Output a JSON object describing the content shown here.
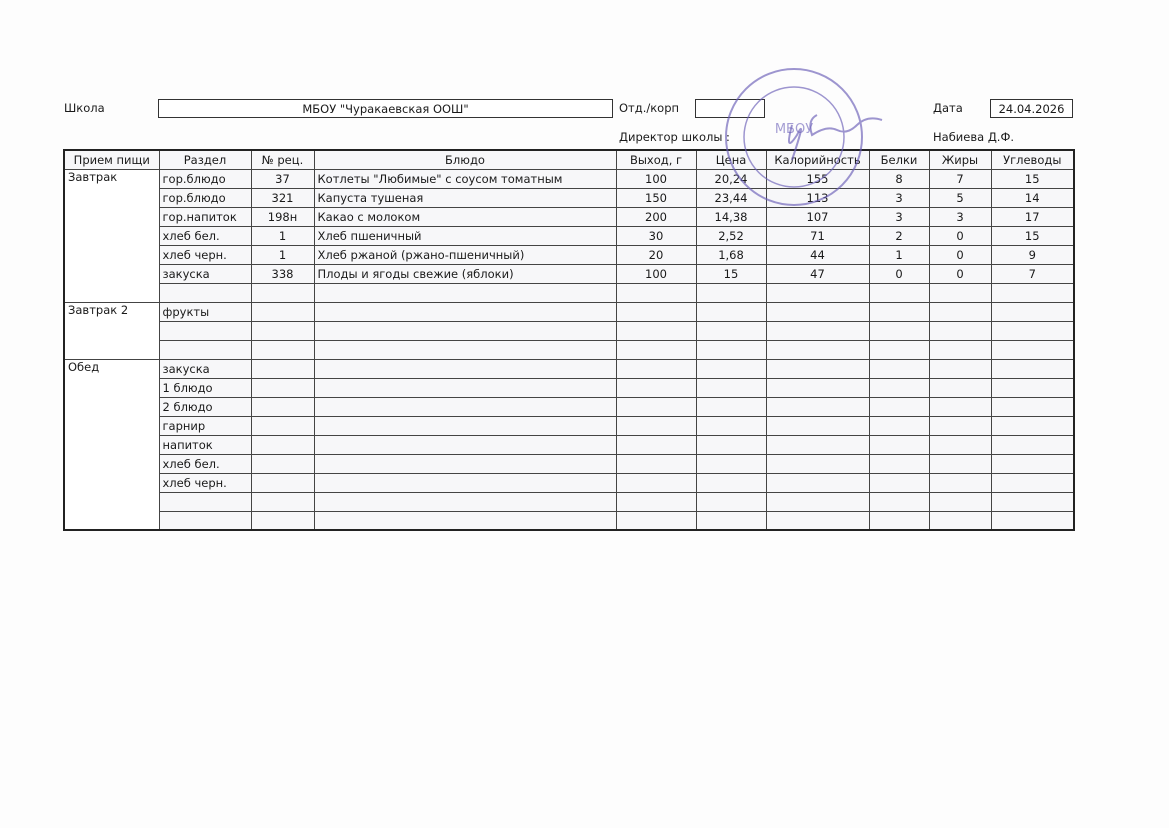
{
  "header": {
    "school_label": "Школа",
    "school_value": "МБОУ \"Чуракаевская ООШ\"",
    "dept_label": "Отд./корп",
    "dept_value": "",
    "date_label": "Дата",
    "date_value": "24.04.2026",
    "director_label": "Директор школы :",
    "director_name": "Набиева Д.Ф."
  },
  "stamp": {
    "text": "МБОУ «Чуракаевская ООШ»",
    "color": "#6a5fb8"
  },
  "columns": [
    "Прием пищи",
    "Раздел",
    "№ рец.",
    "Блюдо",
    "Выход, г",
    "Цена",
    "Калорийность",
    "Белки",
    "Жиры",
    "Углеводы"
  ],
  "meals": [
    {
      "name": "Завтрак",
      "rows": [
        {
          "section": "гор.блюдо",
          "recipe": "37",
          "dish": "Котлеты \"Любимые\" с соусом томатным",
          "yield": "100",
          "price": "20,24",
          "kcal": "155",
          "protein": "8",
          "fat": "7",
          "carbs": "15"
        },
        {
          "section": "гор.блюдо",
          "recipe": "321",
          "dish": "Капуста тушеная",
          "yield": "150",
          "price": "23,44",
          "kcal": "113",
          "protein": "3",
          "fat": "5",
          "carbs": "14"
        },
        {
          "section": "гор.напиток",
          "recipe": "198н",
          "dish": "Какао с молоком",
          "yield": "200",
          "price": "14,38",
          "kcal": "107",
          "protein": "3",
          "fat": "3",
          "carbs": "17"
        },
        {
          "section": "хлеб бел.",
          "recipe": "1",
          "dish": "Хлеб пшеничный",
          "yield": "30",
          "price": "2,52",
          "kcal": "71",
          "protein": "2",
          "fat": "0",
          "carbs": "15"
        },
        {
          "section": "хлеб черн.",
          "recipe": "1",
          "dish": "Хлеб ржаной (ржано-пшеничный)",
          "yield": "20",
          "price": "1,68",
          "kcal": "44",
          "protein": "1",
          "fat": "0",
          "carbs": "9"
        },
        {
          "section": "закуска",
          "recipe": "338",
          "dish": "Плоды и ягоды свежие (яблоки)",
          "yield": "100",
          "price": "15",
          "kcal": "47",
          "protein": "0",
          "fat": "0",
          "carbs": "7"
        },
        {
          "section": "",
          "recipe": "",
          "dish": "",
          "yield": "",
          "price": "",
          "kcal": "",
          "protein": "",
          "fat": "",
          "carbs": ""
        }
      ]
    },
    {
      "name": "Завтрак 2",
      "rows": [
        {
          "section": "фрукты",
          "recipe": "",
          "dish": "",
          "yield": "",
          "price": "",
          "kcal": "",
          "protein": "",
          "fat": "",
          "carbs": ""
        },
        {
          "section": "",
          "recipe": "",
          "dish": "",
          "yield": "",
          "price": "",
          "kcal": "",
          "protein": "",
          "fat": "",
          "carbs": ""
        },
        {
          "section": "",
          "recipe": "",
          "dish": "",
          "yield": "",
          "price": "",
          "kcal": "",
          "protein": "",
          "fat": "",
          "carbs": ""
        }
      ]
    },
    {
      "name": "Обед",
      "rows": [
        {
          "section": "закуска",
          "recipe": "",
          "dish": "",
          "yield": "",
          "price": "",
          "kcal": "",
          "protein": "",
          "fat": "",
          "carbs": ""
        },
        {
          "section": "1 блюдо",
          "recipe": "",
          "dish": "",
          "yield": "",
          "price": "",
          "kcal": "",
          "protein": "",
          "fat": "",
          "carbs": ""
        },
        {
          "section": "2 блюдо",
          "recipe": "",
          "dish": "",
          "yield": "",
          "price": "",
          "kcal": "",
          "protein": "",
          "fat": "",
          "carbs": ""
        },
        {
          "section": "гарнир",
          "recipe": "",
          "dish": "",
          "yield": "",
          "price": "",
          "kcal": "",
          "protein": "",
          "fat": "",
          "carbs": ""
        },
        {
          "section": "напиток",
          "recipe": "",
          "dish": "",
          "yield": "",
          "price": "",
          "kcal": "",
          "protein": "",
          "fat": "",
          "carbs": ""
        },
        {
          "section": "хлеб бел.",
          "recipe": "",
          "dish": "",
          "yield": "",
          "price": "",
          "kcal": "",
          "protein": "",
          "fat": "",
          "carbs": ""
        },
        {
          "section": "хлеб черн.",
          "recipe": "",
          "dish": "",
          "yield": "",
          "price": "",
          "kcal": "",
          "protein": "",
          "fat": "",
          "carbs": ""
        },
        {
          "section": "",
          "recipe": "",
          "dish": "",
          "yield": "",
          "price": "",
          "kcal": "",
          "protein": "",
          "fat": "",
          "carbs": ""
        },
        {
          "section": "",
          "recipe": "",
          "dish": "",
          "yield": "",
          "price": "",
          "kcal": "",
          "protein": "",
          "fat": "",
          "carbs": ""
        }
      ]
    }
  ]
}
